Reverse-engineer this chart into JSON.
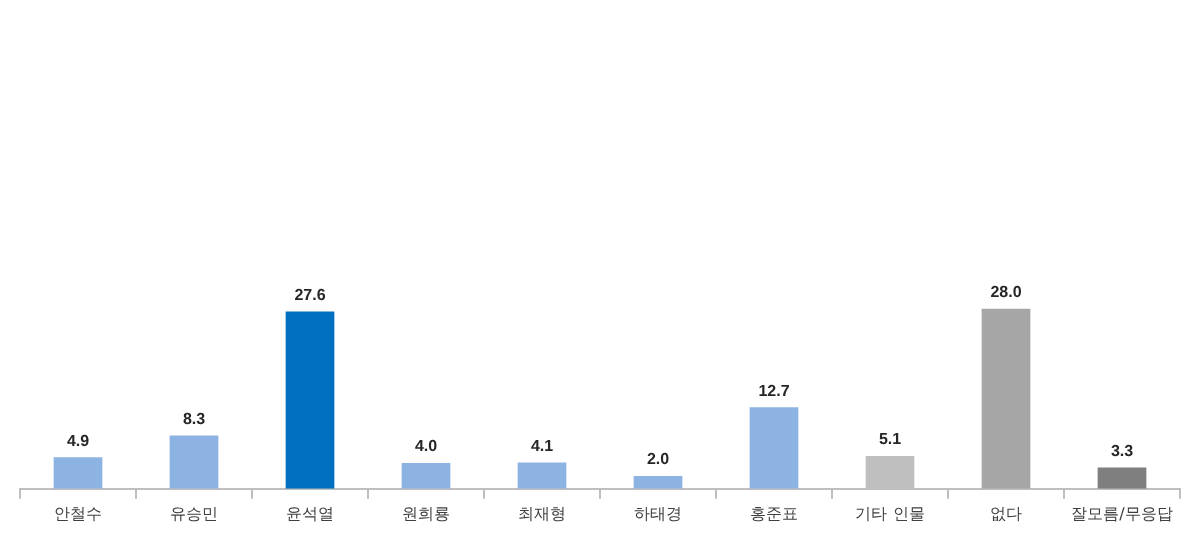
{
  "chart_data": {
    "type": "bar",
    "categories": [
      "안철수",
      "유승민",
      "윤석열",
      "원희룡",
      "최재형",
      "하태경",
      "홍준표",
      "기타 인물",
      "없다",
      "잘모름/무응답"
    ],
    "values": [
      4.9,
      8.3,
      27.6,
      4.0,
      4.1,
      2.0,
      12.7,
      5.1,
      28.0,
      3.3
    ],
    "colors": [
      "#8db3e2",
      "#8db3e2",
      "#0070c0",
      "#8db3e2",
      "#8db3e2",
      "#8db3e2",
      "#8db3e2",
      "#bfbfbf",
      "#a6a6a6",
      "#7f7f7f"
    ],
    "value_labels": [
      "4.9",
      "8.3",
      "27.6",
      "4.0",
      "4.1",
      "2.0",
      "12.7",
      "5.1",
      "28.0",
      "3.3"
    ],
    "grid": false,
    "legend": false
  }
}
